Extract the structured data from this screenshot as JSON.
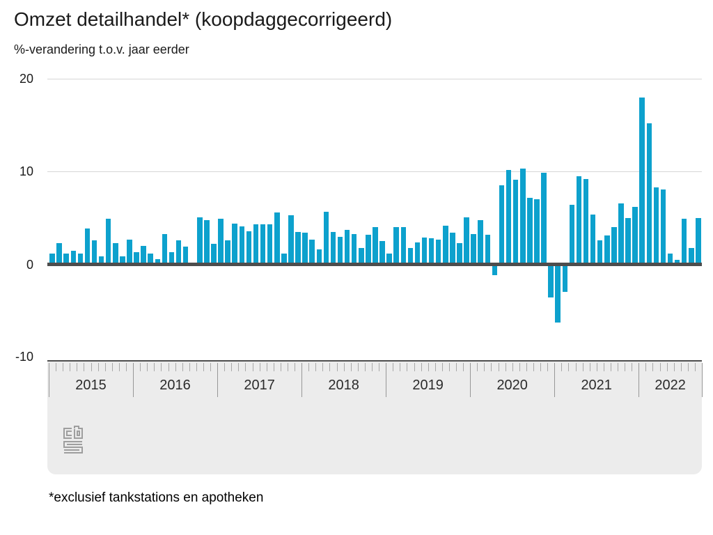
{
  "header": {
    "title": "Omzet detailhandel* (koopdaggecorrigeerd)",
    "subtitle": "%-verandering t.o.v. jaar eerder"
  },
  "footnote": "*exclusief tankstations en apotheken",
  "logo_name": "cbs-logo",
  "colors": {
    "bar": "#0da1cd",
    "zero_line": "#4d4d4d",
    "gridline": "#d6d6d6",
    "band_bg": "#ececec",
    "logo_stroke": "#9e9e9e"
  },
  "chart_data": {
    "type": "bar",
    "title": "Omzet detailhandel* (koopdaggecorrigeerd)",
    "ylabel": "%-verandering t.o.v. jaar eerder",
    "unit": "percent",
    "ylim": [
      -10,
      20
    ],
    "yticks": [
      20,
      10,
      0,
      -10
    ],
    "grid": "horizontal-at-20-and-10",
    "x_start": "2015-01",
    "x_end": "2022-09",
    "year_labels": [
      "2015",
      "2016",
      "2017",
      "2018",
      "2019",
      "2020",
      "2021",
      "2022"
    ],
    "months_per_year": 12,
    "series": [
      {
        "name": "Omzet detailhandel (% t.o.v. jaar eerder)",
        "values": [
          1.2,
          2.3,
          1.2,
          1.5,
          1.2,
          3.9,
          2.6,
          0.9,
          4.9,
          2.3,
          0.9,
          2.7,
          1.3,
          2.0,
          1.2,
          0.6,
          3.3,
          1.3,
          2.6,
          1.9,
          0.2,
          5.1,
          4.8,
          2.2,
          4.9,
          2.6,
          4.4,
          4.1,
          3.6,
          4.3,
          4.3,
          4.3,
          5.6,
          1.2,
          5.3,
          3.5,
          3.4,
          2.7,
          1.6,
          5.7,
          3.5,
          3.0,
          3.7,
          3.3,
          1.8,
          3.2,
          4.0,
          2.5,
          1.2,
          4.0,
          4.0,
          1.8,
          2.4,
          2.9,
          2.8,
          2.7,
          4.2,
          3.4,
          2.3,
          5.1,
          3.3,
          4.8,
          3.2,
          -1.1,
          8.5,
          10.2,
          9.1,
          10.3,
          7.2,
          7.0,
          9.9,
          -3.5,
          -6.2,
          -2.9,
          6.4,
          9.5,
          9.2,
          5.4,
          2.6,
          3.1,
          4.0,
          6.6,
          5.0,
          6.2,
          18.0,
          15.2,
          8.3,
          8.1,
          1.2,
          0.5,
          4.9,
          1.8,
          5.0
        ]
      }
    ]
  }
}
